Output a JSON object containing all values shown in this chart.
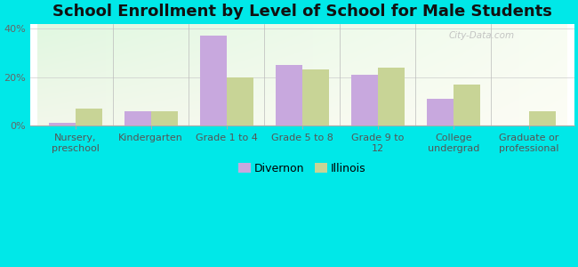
{
  "title": "School Enrollment by Level of School for Male Students",
  "categories": [
    "Nursery,\npreschool",
    "Kindergarten",
    "Grade 1 to 4",
    "Grade 5 to 8",
    "Grade 9 to\n12",
    "College\nundergrad",
    "Graduate or\nprofessional"
  ],
  "divernon": [
    1,
    6,
    37,
    25,
    21,
    11,
    0
  ],
  "illinois": [
    7,
    6,
    20,
    23,
    24,
    17,
    6
  ],
  "divernon_color": "#c8a8de",
  "illinois_color": "#c8d496",
  "bar_width": 0.35,
  "ylim": [
    0,
    42
  ],
  "yticks": [
    0,
    20,
    40
  ],
  "ytick_labels": [
    "0%",
    "20%",
    "40%"
  ],
  "bg_color": "#00e8e8",
  "title_fontsize": 13,
  "tick_fontsize": 8,
  "legend_labels": [
    "Divernon",
    "Illinois"
  ],
  "watermark": "City-Data.com"
}
